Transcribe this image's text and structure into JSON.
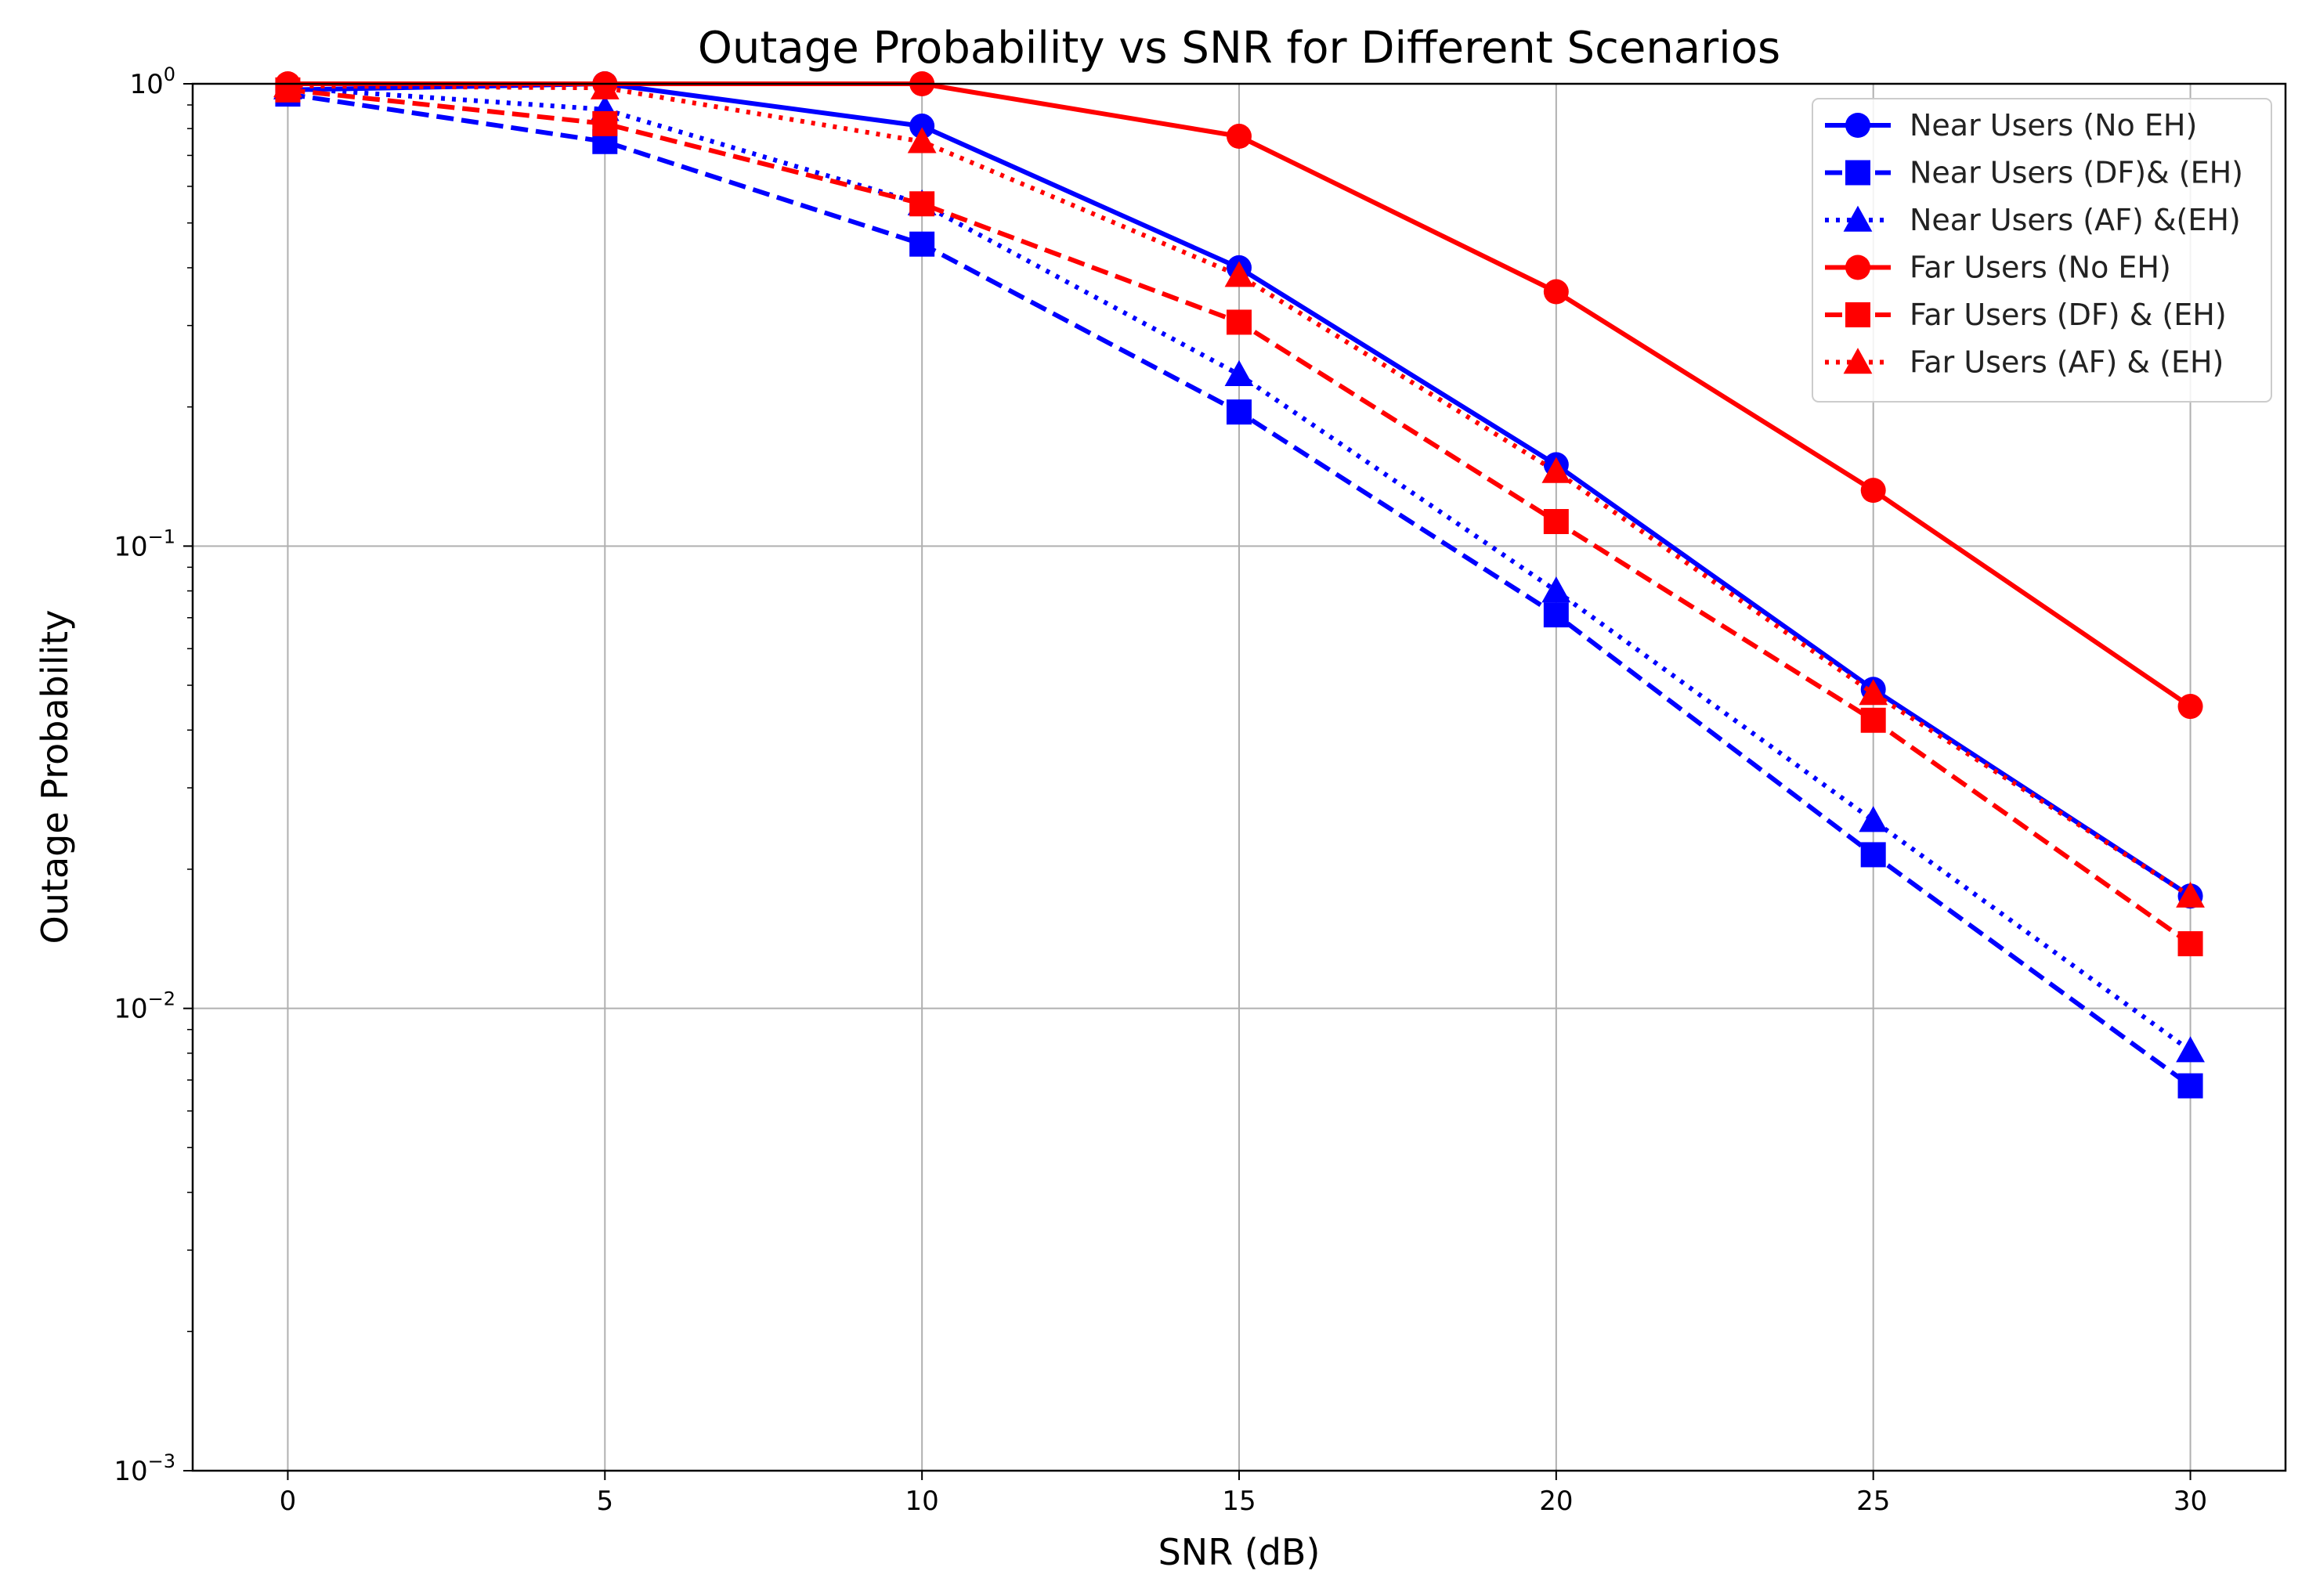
{
  "chart_data": {
    "type": "line",
    "title": "Outage Probability vs SNR for Different Scenarios",
    "xlabel": "SNR (dB)",
    "ylabel": "Outage Probability",
    "xscale": "linear",
    "yscale": "log",
    "xlim": [
      -1.5,
      31.5
    ],
    "ylim": [
      0.001,
      1
    ],
    "x_ticks": [
      0,
      5,
      10,
      15,
      20,
      25,
      30
    ],
    "x_tick_labels": [
      "0",
      "5",
      "10",
      "15",
      "20",
      "25",
      "30"
    ],
    "y_ticks": [
      {
        "value": 0.001,
        "base": "10",
        "exp": "−3"
      },
      {
        "value": 0.01,
        "base": "10",
        "exp": "−2"
      },
      {
        "value": 0.1,
        "base": "10",
        "exp": "−1"
      },
      {
        "value": 1,
        "base": "10",
        "exp": "0"
      }
    ],
    "grid": true,
    "legend_position": "top-right",
    "x": [
      0,
      5,
      10,
      15,
      20,
      25,
      30
    ],
    "series": [
      {
        "name": "Near Users (No EH)",
        "color": "#0000ff",
        "dash": "solid",
        "marker": "circle",
        "values": [
          0.97,
          1.0,
          0.81,
          0.4,
          0.15,
          0.049,
          0.0175
        ]
      },
      {
        "name": "Near Users (DF)& (EH)",
        "color": "#0000ff",
        "dash": "dashed",
        "marker": "square",
        "values": [
          0.95,
          0.75,
          0.45,
          0.195,
          0.071,
          0.0215,
          0.0068
        ]
      },
      {
        "name": "Near Users (AF) &(EH)",
        "color": "#0000ff",
        "dash": "dotted",
        "marker": "triangle",
        "values": [
          0.98,
          0.88,
          0.55,
          0.235,
          0.08,
          0.0255,
          0.0081
        ]
      },
      {
        "name": "Far Users (No EH)",
        "color": "#ff0000",
        "dash": "solid",
        "marker": "circle",
        "values": [
          1.0,
          1.0,
          1.0,
          0.77,
          0.355,
          0.132,
          0.045
        ]
      },
      {
        "name": "Far Users (DF) & (EH)",
        "color": "#ff0000",
        "dash": "dashed",
        "marker": "square",
        "values": [
          0.97,
          0.82,
          0.55,
          0.305,
          0.113,
          0.042,
          0.0138
        ]
      },
      {
        "name": "Far Users (AF) & (EH)",
        "color": "#ff0000",
        "dash": "dotted",
        "marker": "triangle",
        "values": [
          0.99,
          0.98,
          0.75,
          0.385,
          0.145,
          0.048,
          0.0175
        ]
      }
    ]
  }
}
